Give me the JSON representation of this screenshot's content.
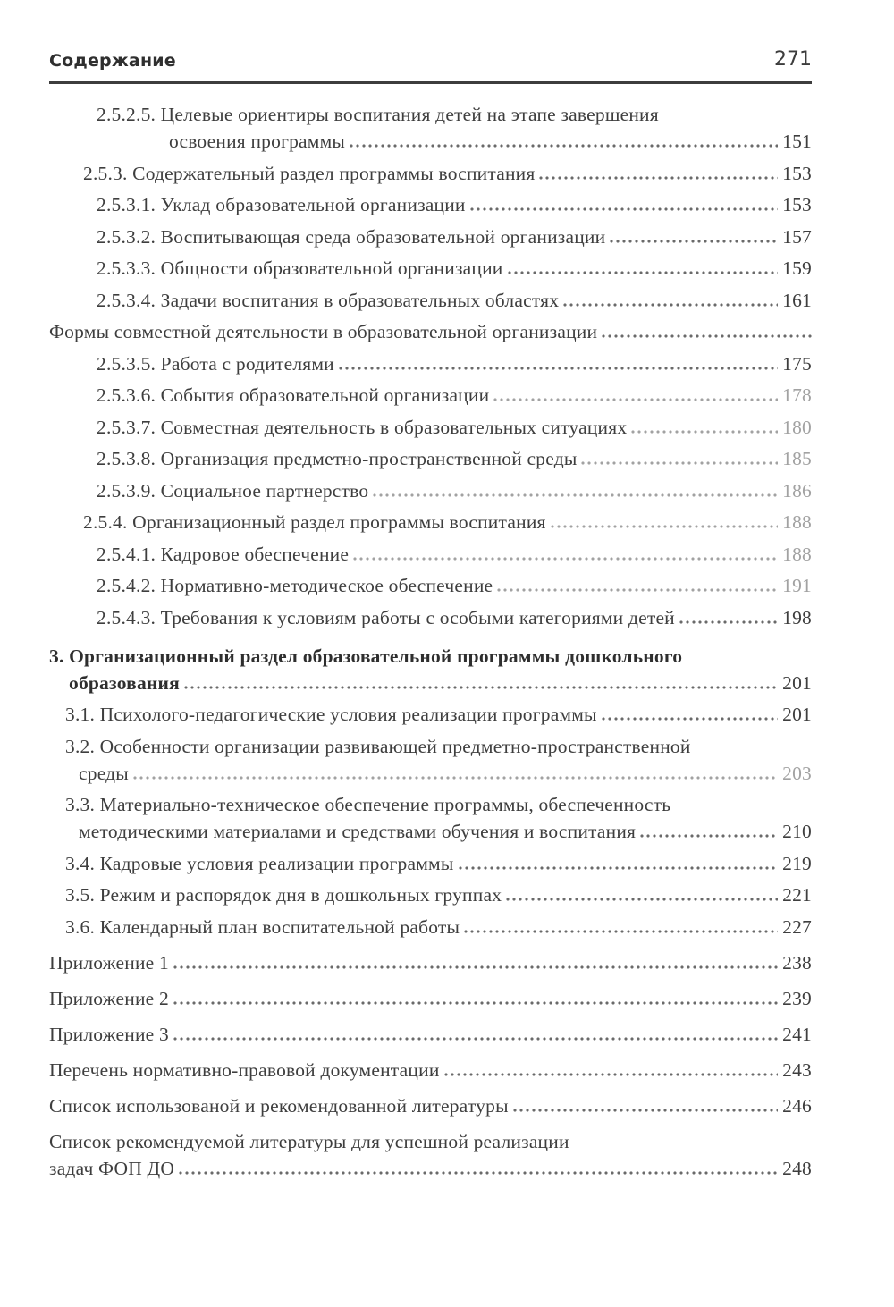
{
  "header": {
    "title": "Содержание",
    "page_number": "271"
  },
  "toc": {
    "entries": [
      {
        "lines": [
          "2.5.2.5. Целевые ориентиры воспитания детей на этапе завершения",
          "освоения программы"
        ],
        "page": "151",
        "level": "subsub",
        "cont": "cont-deep"
      },
      {
        "lines": [
          "2.5.3. Содержательный раздел программы воспитания"
        ],
        "page": "153",
        "level": "sub"
      },
      {
        "lines": [
          "2.5.3.1. Уклад образовательной организации"
        ],
        "page": "153",
        "level": "subsub"
      },
      {
        "lines": [
          "2.5.3.2. Воспитывающая среда образовательной организации"
        ],
        "page": "157",
        "level": "subsub"
      },
      {
        "lines": [
          "2.5.3.3. Общности образовательной организации"
        ],
        "page": "159",
        "level": "subsub"
      },
      {
        "lines": [
          "2.5.3.4. Задачи воспитания в образовательных областях"
        ],
        "page": "161",
        "level": "subsub"
      },
      {
        "lines": [
          "Формы совместной деятельности в образовательной организации"
        ],
        "page": "",
        "level": "flush"
      },
      {
        "lines": [
          "2.5.3.5. Работа с родителями"
        ],
        "page": "175",
        "level": "subsub"
      },
      {
        "lines": [
          "2.5.3.6. События образовательной организации"
        ],
        "page": "178",
        "level": "subsub",
        "faded": true
      },
      {
        "lines": [
          "2.5.3.7. Совместная деятельность в образовательных ситуациях"
        ],
        "page": "180",
        "level": "subsub",
        "faded": true
      },
      {
        "lines": [
          "2.5.3.8. Организация предметно-пространственной среды"
        ],
        "page": "185",
        "level": "subsub",
        "faded": true
      },
      {
        "lines": [
          "2.5.3.9. Социальное партнерство"
        ],
        "page": "186",
        "level": "subsub",
        "faded": true
      },
      {
        "lines": [
          "2.5.4. Организационный раздел программы воспитания"
        ],
        "page": "188",
        "level": "sub",
        "faded": true
      },
      {
        "lines": [
          "2.5.4.1. Кадровое обеспечение"
        ],
        "page": "188",
        "level": "subsub",
        "faded": true
      },
      {
        "lines": [
          "2.5.4.2. Нормативно-методическое обеспечение"
        ],
        "page": "191",
        "level": "subsub",
        "faded": true
      },
      {
        "lines": [
          "2.5.4.3. Требования к условиям работы с особыми категориями детей"
        ],
        "page": "198",
        "level": "subsub"
      },
      {
        "lines": [
          "3. Организационный раздел образовательной программы дошкольного",
          "образования"
        ],
        "page": "201",
        "level": "flush",
        "cont": "cont-bold",
        "bold": true,
        "gap": "md"
      },
      {
        "lines": [
          "3.1. Психолого-педагогические условия реализации программы"
        ],
        "page": "201",
        "level": "sec"
      },
      {
        "lines": [
          "3.2. Особенности организации развивающей предметно-пространственной",
          "среды"
        ],
        "page": "203",
        "level": "sec",
        "cont": "cont-sec",
        "faded": true
      },
      {
        "lines": [
          "3.3. Материально-техническое обеспечение программы, обеспеченность",
          "методическими материалами и средствами обучения и воспитания"
        ],
        "page": "210",
        "level": "sec",
        "cont": "cont-sec"
      },
      {
        "lines": [
          "3.4. Кадровые условия реализации программы"
        ],
        "page": "219",
        "level": "sec"
      },
      {
        "lines": [
          "3.5. Режим и распорядок дня в дошкольных группах"
        ],
        "page": "221",
        "level": "sec"
      },
      {
        "lines": [
          "3.6. Календарный план воспитательной работы"
        ],
        "page": "227",
        "level": "sec"
      },
      {
        "lines": [
          "Приложение 1"
        ],
        "page": "238",
        "level": "flush",
        "gap": "lg"
      },
      {
        "lines": [
          "Приложение 2"
        ],
        "page": "239",
        "level": "flush",
        "gap": "lg"
      },
      {
        "lines": [
          "Приложение 3"
        ],
        "page": "241",
        "level": "flush",
        "gap": "lg"
      },
      {
        "lines": [
          "Перечень нормативно-правовой документации"
        ],
        "page": "243",
        "level": "flush",
        "gap": "lg"
      },
      {
        "lines": [
          "Список использованой и рекомендованной литературы"
        ],
        "page": "246",
        "level": "flush",
        "gap": "lg"
      },
      {
        "lines": [
          "Список рекомендуемой литературы для успешной реализации",
          "задач ФОП ДО"
        ],
        "page": "248",
        "level": "flush",
        "cont": "flush",
        "gap": "lg"
      }
    ]
  }
}
